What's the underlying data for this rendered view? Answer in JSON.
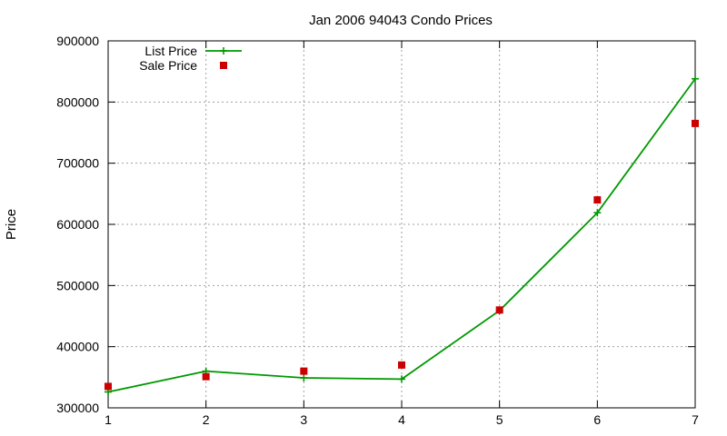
{
  "chart_data": {
    "type": "line",
    "title": "Jan 2006 94043 Condo Prices",
    "xlabel": "",
    "ylabel": "Price",
    "x": [
      1,
      2,
      3,
      4,
      5,
      6,
      7
    ],
    "xlim": [
      1,
      7
    ],
    "ylim": [
      300000,
      900000
    ],
    "x_ticks": [
      "1",
      "2",
      "3",
      "4",
      "5",
      "6",
      "7"
    ],
    "y_ticks": [
      "300000",
      "400000",
      "500000",
      "600000",
      "700000",
      "800000",
      "900000"
    ],
    "grid": true,
    "legend_position": "top-left",
    "series": [
      {
        "name": "List Price",
        "style": "line-with-plus-markers",
        "color": "#009900",
        "values": [
          326000,
          360000,
          349000,
          347000,
          459000,
          619000,
          838000
        ]
      },
      {
        "name": "Sale Price",
        "style": "square-markers",
        "color": "#cc0000",
        "values": [
          335000,
          351000,
          360000,
          370000,
          460000,
          640000,
          765000
        ]
      }
    ]
  }
}
